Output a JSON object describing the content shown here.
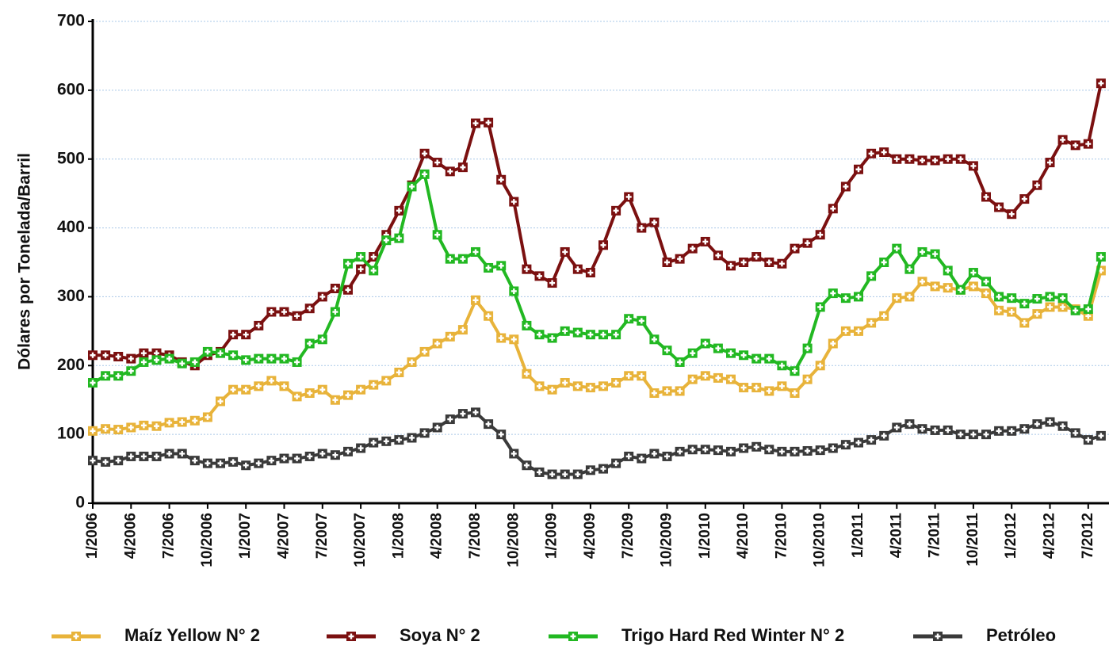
{
  "chart_data": {
    "type": "line",
    "ylabel": "Dólares por Tonelada/Barril",
    "categories": [
      "1/2006",
      null,
      null,
      "4/2006",
      null,
      null,
      "7/2006",
      null,
      null,
      "10/2006",
      null,
      null,
      "1/2007",
      null,
      null,
      "4/2007",
      null,
      null,
      "7/2007",
      null,
      null,
      "10/2007",
      null,
      null,
      "1/2008",
      null,
      null,
      "4/2008",
      null,
      null,
      "7/2008",
      null,
      null,
      "10/2008",
      null,
      null,
      "1/2009",
      null,
      null,
      "4/2009",
      null,
      null,
      "7/2009",
      null,
      null,
      "10/2009",
      null,
      null,
      "1/2010",
      null,
      null,
      "4/2010",
      null,
      null,
      "7/2010",
      null,
      null,
      "10/2010",
      null,
      null,
      "1/2011",
      null,
      null,
      "4/2011",
      null,
      null,
      "7/2011",
      null,
      null,
      "10/2011",
      null,
      null,
      "1/2012",
      null,
      null,
      "4/2012",
      null,
      null,
      "7/2012",
      null
    ],
    "series": [
      {
        "name": "Maíz Yellow N° 2",
        "color": "#e8b33a",
        "values": [
          105,
          108,
          107,
          110,
          113,
          112,
          117,
          118,
          120,
          125,
          148,
          165,
          165,
          170,
          178,
          170,
          155,
          160,
          165,
          150,
          157,
          165,
          172,
          178,
          190,
          205,
          220,
          232,
          242,
          252,
          295,
          272,
          240,
          238,
          188,
          170,
          165,
          175,
          170,
          168,
          170,
          175,
          185,
          185,
          160,
          163,
          163,
          180,
          185,
          182,
          180,
          168,
          168,
          163,
          170,
          160,
          180,
          200,
          232,
          250,
          250,
          262,
          272,
          298,
          300,
          322,
          315,
          313,
          310,
          315,
          305,
          280,
          278,
          262,
          275,
          285,
          285,
          282,
          272,
          338
        ]
      },
      {
        "name": "Soya N° 2",
        "color": "#7b1010",
        "values": [
          215,
          215,
          213,
          210,
          218,
          218,
          215,
          205,
          200,
          215,
          220,
          245,
          245,
          258,
          278,
          278,
          272,
          283,
          300,
          312,
          310,
          340,
          358,
          390,
          425,
          462,
          508,
          495,
          482,
          488,
          552,
          553,
          470,
          438,
          340,
          330,
          320,
          365,
          340,
          335,
          375,
          425,
          445,
          400,
          408,
          350,
          355,
          370,
          380,
          360,
          345,
          350,
          358,
          350,
          348,
          370,
          378,
          390,
          428,
          460,
          485,
          508,
          510,
          500,
          500,
          498,
          498,
          500,
          500,
          490,
          445,
          430,
          420,
          442,
          462,
          495,
          528,
          520,
          522,
          610
        ]
      },
      {
        "name": "Trigo Hard Red Winter N° 2",
        "color": "#22b822",
        "values": [
          175,
          185,
          185,
          192,
          205,
          208,
          210,
          203,
          205,
          220,
          218,
          215,
          208,
          210,
          210,
          210,
          205,
          232,
          238,
          278,
          348,
          358,
          338,
          382,
          385,
          460,
          478,
          390,
          355,
          355,
          365,
          342,
          345,
          308,
          258,
          245,
          240,
          250,
          248,
          245,
          245,
          245,
          268,
          265,
          238,
          222,
          205,
          218,
          232,
          225,
          218,
          215,
          210,
          210,
          200,
          192,
          225,
          285,
          305,
          298,
          300,
          330,
          350,
          370,
          340,
          365,
          362,
          338,
          310,
          335,
          322,
          300,
          298,
          290,
          297,
          300,
          298,
          280,
          282,
          358
        ]
      },
      {
        "name": "Petróleo",
        "color": "#3a3a3a",
        "values": [
          62,
          60,
          62,
          68,
          68,
          68,
          72,
          72,
          62,
          58,
          58,
          60,
          55,
          58,
          62,
          65,
          65,
          68,
          72,
          70,
          75,
          80,
          88,
          90,
          92,
          95,
          102,
          110,
          122,
          130,
          132,
          115,
          100,
          72,
          55,
          45,
          42,
          42,
          42,
          48,
          50,
          58,
          68,
          65,
          72,
          68,
          75,
          78,
          78,
          77,
          75,
          80,
          82,
          78,
          75,
          75,
          76,
          77,
          80,
          85,
          88,
          92,
          98,
          110,
          115,
          108,
          106,
          106,
          100,
          100,
          100,
          105,
          105,
          108,
          115,
          118,
          112,
          102,
          92,
          98
        ]
      }
    ],
    "ylim": [
      0,
      700
    ],
    "yticks": [
      0,
      100,
      200,
      300,
      400,
      500,
      600,
      700
    ],
    "grid": true
  }
}
